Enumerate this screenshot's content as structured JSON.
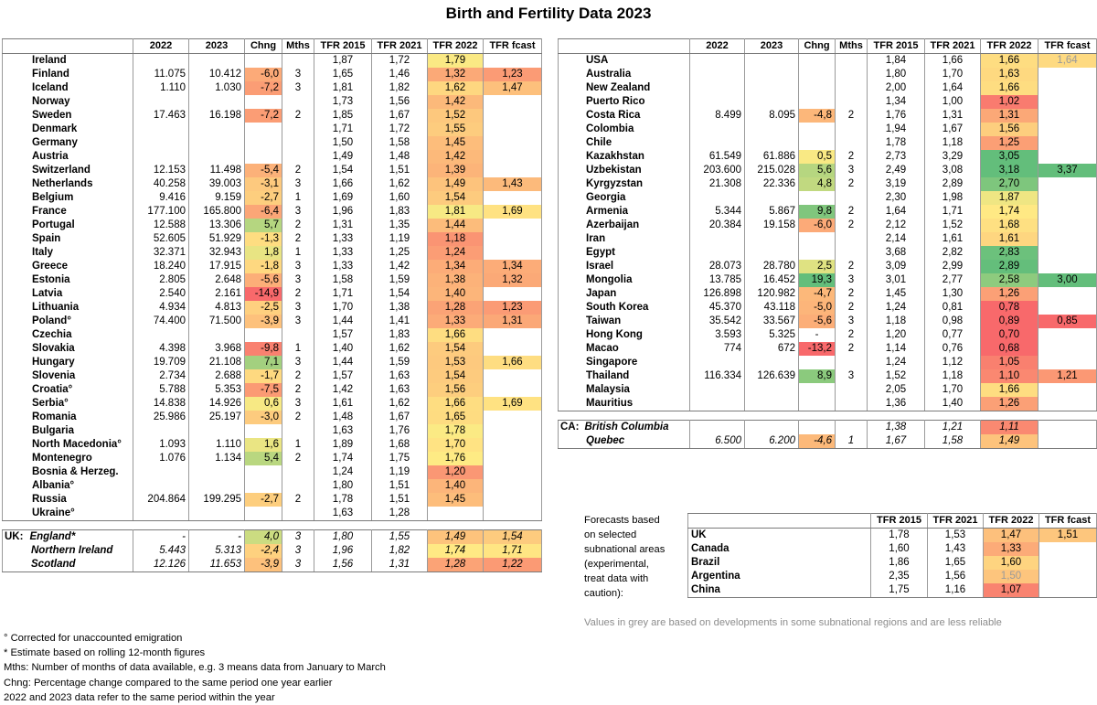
{
  "title": "Birth and Fertility Data 2023",
  "headers": [
    "",
    "2022",
    "2023",
    "Chng",
    "Mths",
    "TFR 2015",
    "TFR 2021",
    "TFR 2022",
    "TFR fcast"
  ],
  "left_rows": [
    {
      "name": "Ireland",
      "v22": "",
      "v23": "",
      "chng": "",
      "mths": "",
      "t15": "1,87",
      "t21": "1,72",
      "t22": "1,79",
      "tf": ""
    },
    {
      "name": "Finland",
      "v22": "11.075",
      "v23": "10.412",
      "chng": "-6,0",
      "mths": "3",
      "t15": "1,65",
      "t21": "1,46",
      "t22": "1,32",
      "tf": "1,23"
    },
    {
      "name": "Iceland",
      "v22": "1.110",
      "v23": "1.030",
      "chng": "-7,2",
      "mths": "3",
      "t15": "1,81",
      "t21": "1,82",
      "t22": "1,62",
      "tf": "1,47"
    },
    {
      "name": "Norway",
      "v22": "",
      "v23": "",
      "chng": "",
      "mths": "",
      "t15": "1,73",
      "t21": "1,56",
      "t22": "1,42",
      "tf": ""
    },
    {
      "name": "Sweden",
      "v22": "17.463",
      "v23": "16.198",
      "chng": "-7,2",
      "mths": "2",
      "t15": "1,85",
      "t21": "1,67",
      "t22": "1,52",
      "tf": ""
    },
    {
      "name": "Denmark",
      "v22": "",
      "v23": "",
      "chng": "",
      "mths": "",
      "t15": "1,71",
      "t21": "1,72",
      "t22": "1,55",
      "tf": ""
    },
    {
      "name": "Germany",
      "v22": "",
      "v23": "",
      "chng": "",
      "mths": "",
      "t15": "1,50",
      "t21": "1,58",
      "t22": "1,45",
      "tf": ""
    },
    {
      "name": "Austria",
      "v22": "",
      "v23": "",
      "chng": "",
      "mths": "",
      "t15": "1,49",
      "t21": "1,48",
      "t22": "1,42",
      "tf": ""
    },
    {
      "name": "Switzerland",
      "v22": "12.153",
      "v23": "11.498",
      "chng": "-5,4",
      "mths": "2",
      "t15": "1,54",
      "t21": "1,51",
      "t22": "1,39",
      "tf": ""
    },
    {
      "name": "Netherlands",
      "v22": "40.258",
      "v23": "39.003",
      "chng": "-3,1",
      "mths": "3",
      "t15": "1,66",
      "t21": "1,62",
      "t22": "1,49",
      "tf": "1,43"
    },
    {
      "name": "Belgium",
      "v22": "9.416",
      "v23": "9.159",
      "chng": "-2,7",
      "mths": "1",
      "t15": "1,69",
      "t21": "1,60",
      "t22": "1,54",
      "tf": ""
    },
    {
      "name": "France",
      "v22": "177.100",
      "v23": "165.800",
      "chng": "-6,4",
      "mths": "3",
      "t15": "1,96",
      "t21": "1,83",
      "t22": "1,81",
      "tf": "1,69"
    },
    {
      "name": "Portugal",
      "v22": "12.588",
      "v23": "13.306",
      "chng": "5,7",
      "mths": "2",
      "t15": "1,31",
      "t21": "1,35",
      "t22": "1,44",
      "tf": ""
    },
    {
      "name": "Spain",
      "v22": "52.605",
      "v23": "51.929",
      "chng": "-1,3",
      "mths": "2",
      "t15": "1,33",
      "t21": "1,19",
      "t22": "1,18",
      "tf": ""
    },
    {
      "name": "Italy",
      "v22": "32.371",
      "v23": "32.943",
      "chng": "1,8",
      "mths": "1",
      "t15": "1,33",
      "t21": "1,25",
      "t22": "1,24",
      "tf": ""
    },
    {
      "name": "Greece",
      "v22": "18.240",
      "v23": "17.915",
      "chng": "-1,8",
      "mths": "3",
      "t15": "1,33",
      "t21": "1,42",
      "t22": "1,34",
      "tf": "1,34"
    },
    {
      "name": "Estonia",
      "v22": "2.805",
      "v23": "2.648",
      "chng": "-5,6",
      "mths": "3",
      "t15": "1,58",
      "t21": "1,59",
      "t22": "1,38",
      "tf": "1,32"
    },
    {
      "name": "Latvia",
      "v22": "2.540",
      "v23": "2.161",
      "chng": "-14,9",
      "mths": "2",
      "t15": "1,71",
      "t21": "1,54",
      "t22": "1,40",
      "tf": ""
    },
    {
      "name": "Lithuania",
      "v22": "4.934",
      "v23": "4.813",
      "chng": "-2,5",
      "mths": "3",
      "t15": "1,70",
      "t21": "1,38",
      "t22": "1,28",
      "tf": "1,23"
    },
    {
      "name": "Poland°",
      "v22": "74.400",
      "v23": "71.500",
      "chng": "-3,9",
      "mths": "3",
      "t15": "1,44",
      "t21": "1,41",
      "t22": "1,33",
      "tf": "1,31"
    },
    {
      "name": "Czechia",
      "v22": "",
      "v23": "",
      "chng": "",
      "mths": "",
      "t15": "1,57",
      "t21": "1,83",
      "t22": "1,66",
      "tf": ""
    },
    {
      "name": "Slovakia",
      "v22": "4.398",
      "v23": "3.968",
      "chng": "-9,8",
      "mths": "1",
      "t15": "1,40",
      "t21": "1,62",
      "t22": "1,54",
      "tf": ""
    },
    {
      "name": "Hungary",
      "v22": "19.709",
      "v23": "21.108",
      "chng": "7,1",
      "mths": "3",
      "t15": "1,44",
      "t21": "1,59",
      "t22": "1,53",
      "tf": "1,66"
    },
    {
      "name": "Slovenia",
      "v22": "2.734",
      "v23": "2.688",
      "chng": "-1,7",
      "mths": "2",
      "t15": "1,57",
      "t21": "1,63",
      "t22": "1,54",
      "tf": ""
    },
    {
      "name": "Croatia°",
      "v22": "5.788",
      "v23": "5.353",
      "chng": "-7,5",
      "mths": "2",
      "t15": "1,42",
      "t21": "1,63",
      "t22": "1,56",
      "tf": ""
    },
    {
      "name": "Serbia°",
      "v22": "14.838",
      "v23": "14.926",
      "chng": "0,6",
      "mths": "3",
      "t15": "1,61",
      "t21": "1,62",
      "t22": "1,66",
      "tf": "1,69"
    },
    {
      "name": "Romania",
      "v22": "25.986",
      "v23": "25.197",
      "chng": "-3,0",
      "mths": "2",
      "t15": "1,48",
      "t21": "1,67",
      "t22": "1,65",
      "tf": ""
    },
    {
      "name": "Bulgaria",
      "v22": "",
      "v23": "",
      "chng": "",
      "mths": "",
      "t15": "1,63",
      "t21": "1,76",
      "t22": "1,78",
      "tf": ""
    },
    {
      "name": "North Macedonia°",
      "v22": "1.093",
      "v23": "1.110",
      "chng": "1,6",
      "mths": "1",
      "t15": "1,89",
      "t21": "1,68",
      "t22": "1,70",
      "tf": ""
    },
    {
      "name": "Montenegro",
      "v22": "1.076",
      "v23": "1.134",
      "chng": "5,4",
      "mths": "2",
      "t15": "1,74",
      "t21": "1,75",
      "t22": "1,76",
      "tf": ""
    },
    {
      "name": "Bosnia & Herzeg.",
      "v22": "",
      "v23": "",
      "chng": "",
      "mths": "",
      "t15": "1,24",
      "t21": "1,19",
      "t22": "1,20",
      "tf": ""
    },
    {
      "name": "Albania°",
      "v22": "",
      "v23": "",
      "chng": "",
      "mths": "",
      "t15": "1,80",
      "t21": "1,51",
      "t22": "1,40",
      "tf": ""
    },
    {
      "name": "Russia",
      "v22": "204.864",
      "v23": "199.295",
      "chng": "-2,7",
      "mths": "2",
      "t15": "1,78",
      "t21": "1,51",
      "t22": "1,45",
      "tf": ""
    },
    {
      "name": "Ukraine°",
      "v22": "",
      "v23": "",
      "chng": "",
      "mths": "",
      "t15": "1,63",
      "t21": "1,28",
      "t22": "",
      "tf": ""
    }
  ],
  "uk": {
    "prefix": "UK:",
    "rows": [
      {
        "name": "England*",
        "v22": "-",
        "v23": "-",
        "chng": "4,0",
        "mths": "3",
        "t15": "1,80",
        "t21": "1,55",
        "t22": "1,49",
        "tf": "1,54"
      },
      {
        "name": "Northern Ireland",
        "v22": "5.443",
        "v23": "5.313",
        "chng": "-2,4",
        "mths": "3",
        "t15": "1,96",
        "t21": "1,82",
        "t22": "1,74",
        "tf": "1,71"
      },
      {
        "name": "Scotland",
        "v22": "12.126",
        "v23": "11.653",
        "chng": "-3,9",
        "mths": "3",
        "t15": "1,56",
        "t21": "1,31",
        "t22": "1,28",
        "tf": "1,22"
      }
    ]
  },
  "right_rows": [
    {
      "name": "USA",
      "v22": "",
      "v23": "",
      "chng": "",
      "mths": "",
      "t15": "1,84",
      "t21": "1,66",
      "t22": "1,66",
      "tf": "1,64"
    },
    {
      "name": "Australia",
      "v22": "",
      "v23": "",
      "chng": "",
      "mths": "",
      "t15": "1,80",
      "t21": "1,70",
      "t22": "1,63",
      "tf": ""
    },
    {
      "name": "New Zealand",
      "v22": "",
      "v23": "",
      "chng": "",
      "mths": "",
      "t15": "2,00",
      "t21": "1,64",
      "t22": "1,66",
      "tf": ""
    },
    {
      "name": "Puerto Rico",
      "v22": "",
      "v23": "",
      "chng": "",
      "mths": "",
      "t15": "1,34",
      "t21": "1,00",
      "t22": "1,02",
      "tf": ""
    },
    {
      "name": "Costa Rica",
      "v22": "8.499",
      "v23": "8.095",
      "chng": "-4,8",
      "mths": "2",
      "t15": "1,76",
      "t21": "1,31",
      "t22": "1,31",
      "tf": ""
    },
    {
      "name": "Colombia",
      "v22": "",
      "v23": "",
      "chng": "",
      "mths": "",
      "t15": "1,94",
      "t21": "1,67",
      "t22": "1,56",
      "tf": ""
    },
    {
      "name": "Chile",
      "v22": "",
      "v23": "",
      "chng": "",
      "mths": "",
      "t15": "1,78",
      "t21": "1,18",
      "t22": "1,25",
      "tf": ""
    },
    {
      "name": "Kazakhstan",
      "v22": "61.549",
      "v23": "61.886",
      "chng": "0,5",
      "mths": "2",
      "t15": "2,73",
      "t21": "3,29",
      "t22": "3,05",
      "tf": ""
    },
    {
      "name": "Uzbekistan",
      "v22": "203.600",
      "v23": "215.028",
      "chng": "5,6",
      "mths": "3",
      "t15": "2,49",
      "t21": "3,08",
      "t22": "3,18",
      "tf": "3,37"
    },
    {
      "name": "Kyrgyzstan",
      "v22": "21.308",
      "v23": "22.336",
      "chng": "4,8",
      "mths": "2",
      "t15": "3,19",
      "t21": "2,89",
      "t22": "2,70",
      "tf": ""
    },
    {
      "name": "Georgia",
      "v22": "",
      "v23": "",
      "chng": "",
      "mths": "",
      "t15": "2,30",
      "t21": "1,98",
      "t22": "1,87",
      "tf": ""
    },
    {
      "name": "Armenia",
      "v22": "5.344",
      "v23": "5.867",
      "chng": "9,8",
      "mths": "2",
      "t15": "1,64",
      "t21": "1,71",
      "t22": "1,74",
      "tf": ""
    },
    {
      "name": "Azerbaijan",
      "v22": "20.384",
      "v23": "19.158",
      "chng": "-6,0",
      "mths": "2",
      "t15": "2,12",
      "t21": "1,52",
      "t22": "1,68",
      "tf": ""
    },
    {
      "name": "Iran",
      "v22": "",
      "v23": "",
      "chng": "",
      "mths": "",
      "t15": "2,14",
      "t21": "1,61",
      "t22": "1,61",
      "tf": ""
    },
    {
      "name": "Egypt",
      "v22": "",
      "v23": "",
      "chng": "",
      "mths": "",
      "t15": "3,68",
      "t21": "2,82",
      "t22": "2,83",
      "tf": ""
    },
    {
      "name": "Israel",
      "v22": "28.073",
      "v23": "28.780",
      "chng": "2,5",
      "mths": "2",
      "t15": "3,09",
      "t21": "2,99",
      "t22": "2,89",
      "tf": ""
    },
    {
      "name": "Mongolia",
      "v22": "13.785",
      "v23": "16.452",
      "chng": "19,3",
      "mths": "3",
      "t15": "3,01",
      "t21": "2,77",
      "t22": "2,58",
      "tf": "3,00"
    },
    {
      "name": "Japan",
      "v22": "126.898",
      "v23": "120.982",
      "chng": "-4,7",
      "mths": "2",
      "t15": "1,45",
      "t21": "1,30",
      "t22": "1,26",
      "tf": ""
    },
    {
      "name": "South Korea",
      "v22": "45.370",
      "v23": "43.118",
      "chng": "-5,0",
      "mths": "2",
      "t15": "1,24",
      "t21": "0,81",
      "t22": "0,78",
      "tf": ""
    },
    {
      "name": "Taiwan",
      "v22": "35.542",
      "v23": "33.567",
      "chng": "-5,6",
      "mths": "3",
      "t15": "1,18",
      "t21": "0,98",
      "t22": "0,89",
      "tf": "0,85"
    },
    {
      "name": "Hong Kong",
      "v22": "3.593",
      "v23": "5.325",
      "chng": "-",
      "mths": "2",
      "t15": "1,20",
      "t21": "0,77",
      "t22": "0,70",
      "tf": ""
    },
    {
      "name": "Macao",
      "v22": "774",
      "v23": "672",
      "chng": "-13,2",
      "mths": "2",
      "t15": "1,14",
      "t21": "0,76",
      "t22": "0,68",
      "tf": ""
    },
    {
      "name": "Singapore",
      "v22": "",
      "v23": "",
      "chng": "",
      "mths": "",
      "t15": "1,24",
      "t21": "1,12",
      "t22": "1,05",
      "tf": ""
    },
    {
      "name": "Thailand",
      "v22": "116.334",
      "v23": "126.639",
      "chng": "8,9",
      "mths": "3",
      "t15": "1,52",
      "t21": "1,18",
      "t22": "1,10",
      "tf": "1,21"
    },
    {
      "name": "Malaysia",
      "v22": "",
      "v23": "",
      "chng": "",
      "mths": "",
      "t15": "2,05",
      "t21": "1,70",
      "t22": "1,66",
      "tf": ""
    },
    {
      "name": "Mauritius",
      "v22": "",
      "v23": "",
      "chng": "",
      "mths": "",
      "t15": "1,36",
      "t21": "1,40",
      "t22": "1,26",
      "tf": ""
    }
  ],
  "ca": {
    "prefix": "CA:",
    "rows": [
      {
        "name": "British Columbia",
        "v22": "",
        "v23": "",
        "chng": "",
        "mths": "",
        "t15": "1,38",
        "t21": "1,21",
        "t22": "1,11",
        "tf": ""
      },
      {
        "name": "Quebec",
        "v22": "6.500",
        "v23": "6.200",
        "chng": "-4,6",
        "mths": "1",
        "t15": "1,67",
        "t21": "1,58",
        "t22": "1,49",
        "tf": ""
      }
    ]
  },
  "forecast": {
    "intro": [
      "Forecasts based",
      "on selected",
      "subnational areas",
      "(experimental,",
      "treat data with",
      "caution):"
    ],
    "headers": [
      "TFR 2015",
      "TFR 2021",
      "TFR 2022",
      "TFR fcast"
    ],
    "rows": [
      {
        "name": "UK",
        "t15": "1,78",
        "t21": "1,53",
        "t22": "1,47",
        "tf": "1,51"
      },
      {
        "name": "Canada",
        "t15": "1,60",
        "t21": "1,43",
        "t22": "1,33",
        "tf": ""
      },
      {
        "name": "Brazil",
        "t15": "1,86",
        "t21": "1,65",
        "t22": "1,60",
        "tf": ""
      },
      {
        "name": "Argentina",
        "t15": "2,35",
        "t21": "1,56",
        "t22": "1,50",
        "tf": ""
      },
      {
        "name": "China",
        "t15": "1,75",
        "t21": "1,16",
        "t22": "1,07",
        "tf": ""
      }
    ],
    "note": "Values in grey are based on developments in some subnational regions and are less reliable"
  },
  "grey_values": [
    "USA.tf",
    "Argentina.t22"
  ],
  "footnotes": [
    "° Corrected for unaccounted emigration",
    "* Estimate based on rolling 12-month figures",
    "Mths: Number of months of data available, e.g. 3 means data from January to March",
    "Chng: Percentage change compared to the same period one year earlier",
    "2022 and 2023 data refer to the same period within the year"
  ],
  "chart_data": {
    "type": "table",
    "title": "Birth and Fertility Data 2023",
    "columns": [
      "",
      "2022",
      "2023",
      "Chng",
      "Mths",
      "TFR 2015",
      "TFR 2021",
      "TFR 2022",
      "TFR fcast"
    ],
    "color_scale": {
      "low": "#f8696b",
      "mid": "#ffeb84",
      "high": "#63be7b"
    }
  }
}
